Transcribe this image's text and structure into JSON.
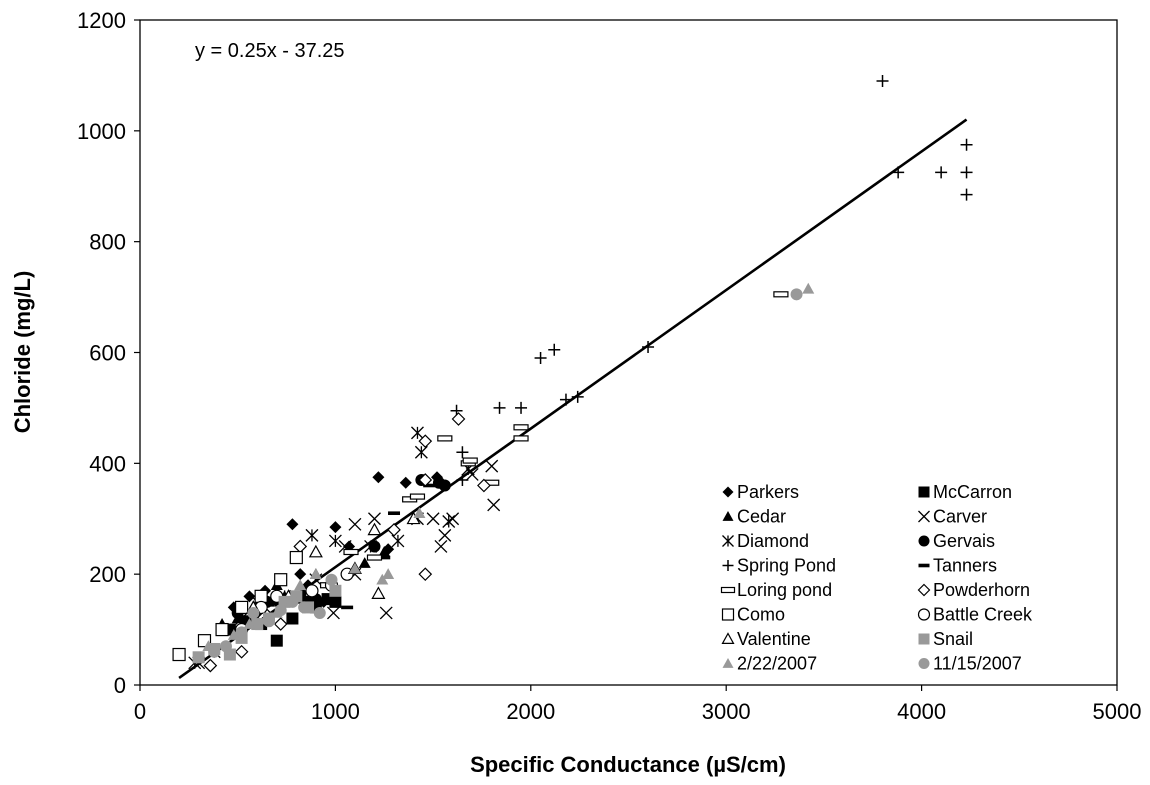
{
  "chart_data": {
    "type": "scatter",
    "xlabel": "Specific Conductance (µS/cm)",
    "ylabel": "Chloride (mg/L)",
    "xlim": [
      0,
      5000
    ],
    "ylim": [
      0,
      1200
    ],
    "x_ticks": [
      0,
      1000,
      2000,
      3000,
      4000,
      5000
    ],
    "y_ticks": [
      0,
      200,
      400,
      600,
      800,
      1000,
      1200
    ],
    "grid": false,
    "legend_position": "bottom-right",
    "annotations": [
      {
        "text": "y = 0.25x - 37.25"
      }
    ],
    "trendline": {
      "slope": 0.25,
      "intercept": -37.25,
      "x_range": [
        200,
        4230
      ]
    },
    "series": [
      {
        "name": "Parkers",
        "marker": "diamond-filled",
        "color": "#000000",
        "points": [
          [
            480,
            140
          ],
          [
            560,
            160
          ],
          [
            640,
            170
          ],
          [
            700,
            150
          ],
          [
            780,
            290
          ],
          [
            860,
            180
          ],
          [
            940,
            150
          ],
          [
            1000,
            285
          ],
          [
            1070,
            250
          ],
          [
            1220,
            375
          ],
          [
            1270,
            245
          ],
          [
            1360,
            365
          ],
          [
            1450,
            370
          ],
          [
            1520,
            375
          ],
          [
            1560,
            360
          ],
          [
            820,
            200
          ],
          [
            600,
            130
          ]
        ]
      },
      {
        "name": "McCarron",
        "marker": "square-filled",
        "color": "#000000",
        "points": [
          [
            460,
            100
          ],
          [
            540,
            115
          ],
          [
            620,
            110
          ],
          [
            700,
            80
          ],
          [
            780,
            120
          ],
          [
            860,
            150
          ],
          [
            960,
            155
          ],
          [
            1000,
            150
          ],
          [
            900,
            140
          ],
          [
            820,
            160
          ]
        ]
      },
      {
        "name": "Cedar",
        "marker": "triangle-filled",
        "color": "#000000",
        "points": [
          [
            420,
            110
          ],
          [
            500,
            120
          ],
          [
            580,
            130
          ],
          [
            660,
            150
          ],
          [
            700,
            180
          ],
          [
            740,
            160
          ],
          [
            900,
            200
          ],
          [
            1250,
            240
          ],
          [
            1150,
            220
          ]
        ]
      },
      {
        "name": "Carver",
        "marker": "x",
        "color": "#000000",
        "points": [
          [
            300,
            40
          ],
          [
            600,
            150
          ],
          [
            900,
            190
          ],
          [
            990,
            130
          ],
          [
            1050,
            250
          ],
          [
            1100,
            290
          ],
          [
            1200,
            300
          ],
          [
            1260,
            130
          ],
          [
            1420,
            300
          ],
          [
            1500,
            300
          ],
          [
            1540,
            250
          ],
          [
            1560,
            270
          ],
          [
            1600,
            300
          ],
          [
            1700,
            380
          ],
          [
            1800,
            395
          ],
          [
            1810,
            325
          ],
          [
            1100,
            200
          ]
        ]
      },
      {
        "name": "Diamond",
        "marker": "asterisk",
        "color": "#000000",
        "points": [
          [
            280,
            40
          ],
          [
            380,
            60
          ],
          [
            520,
            120
          ],
          [
            640,
            140
          ],
          [
            740,
            160
          ],
          [
            880,
            270
          ],
          [
            1000,
            260
          ],
          [
            1180,
            250
          ],
          [
            1320,
            260
          ],
          [
            1420,
            455
          ],
          [
            1440,
            420
          ],
          [
            1580,
            295
          ],
          [
            1680,
            390
          ]
        ]
      },
      {
        "name": "Gervais",
        "marker": "circle-filled",
        "color": "#000000",
        "points": [
          [
            500,
            130
          ],
          [
            650,
            150
          ],
          [
            900,
            155
          ],
          [
            1200,
            250
          ],
          [
            1440,
            370
          ],
          [
            1530,
            365
          ],
          [
            1560,
            360
          ]
        ]
      },
      {
        "name": "Spring Pond",
        "marker": "plus",
        "color": "#000000",
        "points": [
          [
            1620,
            495
          ],
          [
            1650,
            420
          ],
          [
            1650,
            370
          ],
          [
            1840,
            500
          ],
          [
            1950,
            500
          ],
          [
            2050,
            590
          ],
          [
            2120,
            605
          ],
          [
            2180,
            515
          ],
          [
            2240,
            520
          ],
          [
            2600,
            610
          ],
          [
            3800,
            1090
          ],
          [
            3880,
            925
          ],
          [
            4100,
            925
          ],
          [
            4230,
            975
          ],
          [
            4230,
            925
          ],
          [
            4230,
            885
          ]
        ]
      },
      {
        "name": "Tanners",
        "marker": "dash",
        "color": "#000000",
        "points": [
          [
            420,
            95
          ],
          [
            620,
            110
          ],
          [
            820,
            150
          ],
          [
            1060,
            140
          ],
          [
            1250,
            230
          ],
          [
            1300,
            310
          ],
          [
            1480,
            360
          ],
          [
            1540,
            365
          ]
        ]
      },
      {
        "name": "Loring pond",
        "marker": "dash-open",
        "color": "#000000",
        "points": [
          [
            960,
            180
          ],
          [
            1080,
            240
          ],
          [
            1200,
            230
          ],
          [
            1380,
            335
          ],
          [
            1420,
            340
          ],
          [
            1560,
            445
          ],
          [
            1680,
            400
          ],
          [
            1690,
            405
          ],
          [
            1800,
            365
          ],
          [
            1950,
            465
          ],
          [
            1950,
            445
          ],
          [
            3280,
            705
          ]
        ]
      },
      {
        "name": "Powderhorn",
        "marker": "diamond-open",
        "color": "#000000",
        "points": [
          [
            360,
            35
          ],
          [
            520,
            60
          ],
          [
            720,
            110
          ],
          [
            820,
            250
          ],
          [
            1300,
            280
          ],
          [
            1460,
            200
          ],
          [
            1460,
            370
          ],
          [
            1460,
            440
          ],
          [
            1630,
            480
          ],
          [
            1760,
            360
          ]
        ]
      },
      {
        "name": "Como",
        "marker": "square-open",
        "color": "#000000",
        "points": [
          [
            200,
            55
          ],
          [
            330,
            80
          ],
          [
            420,
            100
          ],
          [
            520,
            140
          ],
          [
            620,
            160
          ],
          [
            720,
            190
          ],
          [
            800,
            230
          ]
        ]
      },
      {
        "name": "Battle Creek",
        "marker": "circle-open",
        "color": "#000000",
        "points": [
          [
            520,
            100
          ],
          [
            620,
            140
          ],
          [
            700,
            160
          ],
          [
            880,
            170
          ],
          [
            980,
            180
          ],
          [
            1060,
            200
          ]
        ]
      },
      {
        "name": "Valentine",
        "marker": "triangle-open",
        "color": "#000000",
        "points": [
          [
            580,
            140
          ],
          [
            760,
            160
          ],
          [
            900,
            240
          ],
          [
            1100,
            210
          ],
          [
            1200,
            280
          ],
          [
            1220,
            165
          ],
          [
            1400,
            300
          ]
        ]
      },
      {
        "name": "Snail",
        "marker": "square-filled",
        "color": "#999999",
        "points": [
          [
            300,
            50
          ],
          [
            380,
            65
          ],
          [
            460,
            55
          ],
          [
            520,
            85
          ],
          [
            600,
            110
          ],
          [
            660,
            120
          ],
          [
            740,
            150
          ],
          [
            800,
            160
          ],
          [
            860,
            140
          ],
          [
            1000,
            170
          ]
        ]
      },
      {
        "name": "2/22/2007",
        "marker": "triangle-filled",
        "color": "#999999",
        "points": [
          [
            350,
            70
          ],
          [
            480,
            90
          ],
          [
            560,
            110
          ],
          [
            700,
            130
          ],
          [
            820,
            180
          ],
          [
            900,
            200
          ],
          [
            1100,
            210
          ],
          [
            1240,
            190
          ],
          [
            1270,
            200
          ],
          [
            1430,
            310
          ],
          [
            3420,
            715
          ]
        ]
      },
      {
        "name": "11/15/2007",
        "marker": "circle-filled",
        "color": "#999999",
        "points": [
          [
            380,
            60
          ],
          [
            440,
            70
          ],
          [
            520,
            95
          ],
          [
            580,
            130
          ],
          [
            660,
            115
          ],
          [
            720,
            135
          ],
          [
            780,
            150
          ],
          [
            840,
            140
          ],
          [
            920,
            130
          ],
          [
            980,
            190
          ],
          [
            3360,
            705
          ]
        ]
      }
    ]
  }
}
